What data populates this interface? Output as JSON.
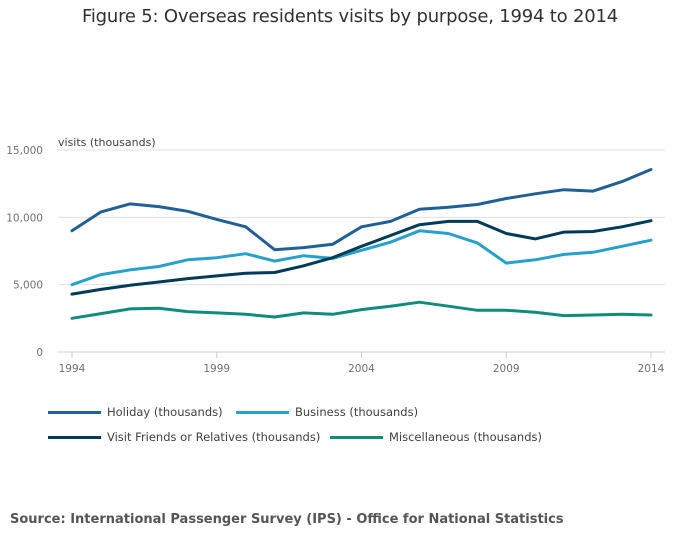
{
  "chart_data": {
    "type": "line",
    "title": "Figure 5: Overseas residents visits by purpose, 1994 to 2014",
    "xlabel": "",
    "ylabel": "visits (thousands)",
    "x": [
      1994,
      1995,
      1996,
      1997,
      1998,
      1999,
      2000,
      2001,
      2002,
      2003,
      2004,
      2005,
      2006,
      2007,
      2008,
      2009,
      2010,
      2011,
      2012,
      2013,
      2014
    ],
    "xlim": [
      1994,
      2014
    ],
    "ylim": [
      0,
      15000
    ],
    "x_ticks": [
      1994,
      1999,
      2004,
      2009,
      2014
    ],
    "x_tick_labels": [
      "1994",
      "1999",
      "2004",
      "2009",
      "2014"
    ],
    "y_ticks": [
      0,
      5000,
      10000,
      15000
    ],
    "y_tick_labels": [
      "0",
      "5,000",
      "10,000",
      "15,000"
    ],
    "grid": true,
    "legend_position": "bottom",
    "series": [
      {
        "name": "Holiday (thousands)",
        "color": "#206095",
        "values": [
          9000,
          10400,
          11000,
          10800,
          10450,
          9850,
          9300,
          7600,
          7750,
          8000,
          9300,
          9700,
          10600,
          10750,
          10950,
          11400,
          11750,
          12050,
          11950,
          12650,
          13550
        ]
      },
      {
        "name": "Business (thousands)",
        "color": "#27a0cc",
        "values": [
          5000,
          5750,
          6100,
          6350,
          6850,
          7000,
          7300,
          6750,
          7150,
          6950,
          7550,
          8150,
          9000,
          8800,
          8100,
          6600,
          6850,
          7250,
          7400,
          7850,
          8300
        ]
      },
      {
        "name": "Visit Friends or Relatives (thousands)",
        "color": "#003c57",
        "values": [
          4300,
          4650,
          4950,
          5200,
          5450,
          5650,
          5850,
          5900,
          6400,
          7000,
          7850,
          8650,
          9450,
          9700,
          9700,
          8800,
          8400,
          8900,
          8950,
          9300,
          9750
        ]
      },
      {
        "name": "Miscellaneous (thousands)",
        "color": "#118c7b",
        "values": [
          2500,
          2850,
          3200,
          3250,
          3000,
          2900,
          2800,
          2600,
          2900,
          2800,
          3150,
          3400,
          3700,
          3400,
          3100,
          3100,
          2950,
          2700,
          2750,
          2800,
          2750
        ]
      }
    ]
  },
  "source": "Source: International Passenger Survey (IPS) - Office for National Statistics",
  "colors": {
    "gridline": "#e0e0e0",
    "axis": "#bfcfe0",
    "text": "#414042"
  }
}
